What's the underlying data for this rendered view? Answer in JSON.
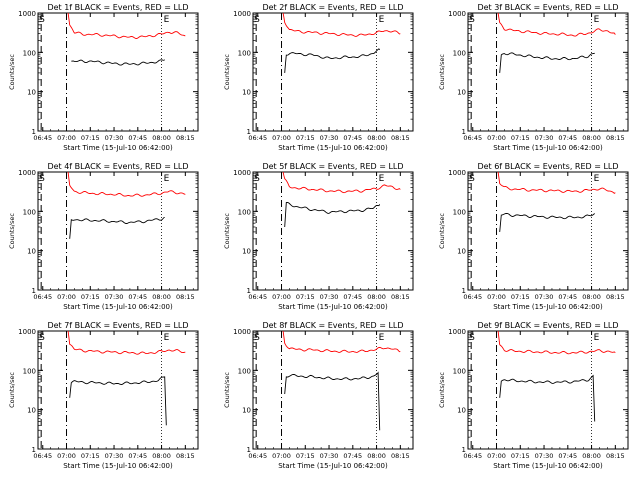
{
  "chart_data": [
    {
      "type": "line",
      "title": "Det 1f BLACK = Events, RED = LLD",
      "xlabel": "Start Time (15-Jul-10 06:42:00)",
      "ylabel": "Counts/sec",
      "y_scale": "log",
      "ylim": [
        1,
        1000
      ],
      "x_ticks": [
        "06:45",
        "07:00",
        "07:15",
        "07:30",
        "07:45",
        "08:00",
        "08:15"
      ],
      "markers": {
        "S": "06:44",
        "E": "08:00"
      },
      "series": [
        {
          "name": "LLD",
          "color": "#ff0000",
          "x": [
            "07:01",
            "07:02",
            "07:05",
            "07:10",
            "07:20",
            "07:30",
            "07:40",
            "07:50",
            "08:00",
            "08:05",
            "08:10",
            "08:15"
          ],
          "y": [
            1000,
            500,
            320,
            290,
            280,
            260,
            240,
            250,
            290,
            330,
            310,
            260
          ]
        },
        {
          "name": "Events",
          "color": "#000000",
          "x": [
            "07:03",
            "07:05",
            "07:10",
            "07:20",
            "07:30",
            "07:40",
            "07:50",
            "08:00",
            "08:02"
          ],
          "y": [
            60,
            58,
            60,
            57,
            52,
            50,
            53,
            60,
            65
          ]
        }
      ]
    },
    {
      "type": "line",
      "title": "Det 2f BLACK = Events, RED = LLD",
      "xlabel": "Start Time (15-Jul-10 06:42:00)",
      "ylabel": "Counts/sec",
      "y_scale": "log",
      "ylim": [
        1,
        1000
      ],
      "x_ticks": [
        "06:45",
        "07:00",
        "07:15",
        "07:30",
        "07:45",
        "08:00",
        "08:15"
      ],
      "markers": {
        "S": "06:44",
        "E": "08:00"
      },
      "series": [
        {
          "name": "LLD",
          "color": "#ff0000",
          "x": [
            "07:01",
            "07:02",
            "07:05",
            "07:10",
            "07:20",
            "07:30",
            "07:40",
            "07:50",
            "08:00",
            "08:05",
            "08:10",
            "08:15"
          ],
          "y": [
            1000,
            600,
            380,
            340,
            320,
            300,
            280,
            270,
            310,
            360,
            340,
            300
          ]
        },
        {
          "name": "Events",
          "color": "#000000",
          "x": [
            "07:02",
            "07:03",
            "07:05",
            "07:10",
            "07:20",
            "07:30",
            "07:40",
            "07:50",
            "07:58",
            "08:00",
            "08:02"
          ],
          "y": [
            30,
            90,
            95,
            92,
            85,
            70,
            75,
            78,
            95,
            110,
            115
          ]
        }
      ]
    },
    {
      "type": "line",
      "title": "Det 3f BLACK = Events, RED = LLD",
      "xlabel": "Start Time (15-Jul-10 06:42:00)",
      "ylabel": "Counts/sec",
      "y_scale": "log",
      "ylim": [
        1,
        1000
      ],
      "x_ticks": [
        "06:45",
        "07:00",
        "07:15",
        "07:30",
        "07:45",
        "08:00",
        "08:15"
      ],
      "markers": {
        "S": "06:44",
        "E": "08:00"
      },
      "series": [
        {
          "name": "LLD",
          "color": "#ff0000",
          "x": [
            "07:01",
            "07:02",
            "07:05",
            "07:10",
            "07:20",
            "07:30",
            "07:40",
            "07:50",
            "08:00",
            "08:05",
            "08:10",
            "08:15"
          ],
          "y": [
            1000,
            550,
            400,
            360,
            330,
            300,
            290,
            270,
            320,
            380,
            350,
            280
          ]
        },
        {
          "name": "Events",
          "color": "#000000",
          "x": [
            "07:02",
            "07:03",
            "07:05",
            "07:10",
            "07:20",
            "07:30",
            "07:40",
            "07:50",
            "07:58",
            "08:00",
            "08:02"
          ],
          "y": [
            30,
            85,
            95,
            90,
            80,
            72,
            68,
            70,
            80,
            90,
            95
          ]
        }
      ]
    },
    {
      "type": "line",
      "title": "Det 4f BLACK = Events, RED = LLD",
      "xlabel": "Start Time (15-Jul-10 06:42:00)",
      "ylabel": "Counts/sec",
      "y_scale": "log",
      "ylim": [
        1,
        1000
      ],
      "x_ticks": [
        "06:45",
        "07:00",
        "07:15",
        "07:30",
        "07:45",
        "08:00",
        "08:15"
      ],
      "markers": {
        "S": "06:44",
        "E": "08:00"
      },
      "series": [
        {
          "name": "LLD",
          "color": "#ff0000",
          "x": [
            "07:01",
            "07:02",
            "07:05",
            "07:10",
            "07:20",
            "07:30",
            "07:40",
            "07:50",
            "08:00",
            "08:05",
            "08:10",
            "08:15"
          ],
          "y": [
            1000,
            450,
            320,
            300,
            280,
            270,
            250,
            260,
            290,
            320,
            300,
            270
          ]
        },
        {
          "name": "Events",
          "color": "#000000",
          "x": [
            "07:02",
            "07:03",
            "07:05",
            "07:10",
            "07:20",
            "07:30",
            "07:40",
            "07:50",
            "08:00",
            "08:02"
          ],
          "y": [
            20,
            60,
            62,
            60,
            58,
            55,
            52,
            56,
            65,
            70
          ]
        }
      ]
    },
    {
      "type": "line",
      "title": "Det 5f BLACK = Events, RED = LLD",
      "xlabel": "Start Time (15-Jul-10 06:42:00)",
      "ylabel": "Counts/sec",
      "y_scale": "log",
      "ylim": [
        1,
        1000
      ],
      "x_ticks": [
        "06:45",
        "07:00",
        "07:15",
        "07:30",
        "07:45",
        "08:00",
        "08:15"
      ],
      "markers": {
        "S": "06:44",
        "E": "08:00"
      },
      "series": [
        {
          "name": "LLD",
          "color": "#ff0000",
          "x": [
            "07:01",
            "07:02",
            "07:05",
            "07:10",
            "07:20",
            "07:30",
            "07:40",
            "07:50",
            "08:00",
            "08:05",
            "08:10",
            "08:15"
          ],
          "y": [
            1000,
            650,
            420,
            390,
            360,
            330,
            320,
            330,
            380,
            450,
            420,
            360
          ]
        },
        {
          "name": "Events",
          "color": "#000000",
          "x": [
            "07:02",
            "07:03",
            "07:05",
            "07:10",
            "07:20",
            "07:30",
            "07:40",
            "07:50",
            "07:58",
            "08:00",
            "08:02"
          ],
          "y": [
            40,
            160,
            150,
            130,
            110,
            95,
            100,
            105,
            120,
            140,
            150
          ]
        }
      ]
    },
    {
      "type": "line",
      "title": "Det 6f BLACK = Events, RED = LLD",
      "xlabel": "Start Time (15-Jul-10 06:42:00)",
      "ylabel": "Counts/sec",
      "y_scale": "log",
      "ylim": [
        1,
        1000
      ],
      "x_ticks": [
        "06:45",
        "07:00",
        "07:15",
        "07:30",
        "07:45",
        "08:00",
        "08:15"
      ],
      "markers": {
        "S": "06:44",
        "E": "08:00"
      },
      "series": [
        {
          "name": "LLD",
          "color": "#ff0000",
          "x": [
            "07:01",
            "07:02",
            "07:05",
            "07:10",
            "07:20",
            "07:30",
            "07:40",
            "07:50",
            "08:00",
            "08:05",
            "08:10",
            "08:15"
          ],
          "y": [
            1000,
            520,
            400,
            370,
            350,
            340,
            330,
            320,
            350,
            380,
            340,
            300
          ]
        },
        {
          "name": "Events",
          "color": "#000000",
          "x": [
            "07:02",
            "07:03",
            "07:05",
            "07:10",
            "07:20",
            "07:30",
            "07:40",
            "07:50",
            "07:58",
            "08:00",
            "08:02"
          ],
          "y": [
            30,
            80,
            85,
            80,
            76,
            72,
            70,
            70,
            75,
            80,
            88
          ]
        }
      ]
    },
    {
      "type": "line",
      "title": "Det 7f BLACK = Events, RED = LLD",
      "xlabel": "Start Time (15-Jul-10 06:42:00)",
      "ylabel": "Counts/sec",
      "y_scale": "log",
      "ylim": [
        1,
        1000
      ],
      "x_ticks": [
        "06:45",
        "07:00",
        "07:15",
        "07:30",
        "07:45",
        "08:00",
        "08:15"
      ],
      "markers": {
        "S": "06:44",
        "E": "08:00"
      },
      "series": [
        {
          "name": "LLD",
          "color": "#ff0000",
          "x": [
            "07:01",
            "07:02",
            "07:05",
            "07:10",
            "07:20",
            "07:30",
            "07:40",
            "07:50",
            "08:00",
            "08:05",
            "08:10",
            "08:15"
          ],
          "y": [
            1000,
            480,
            340,
            320,
            300,
            290,
            280,
            270,
            300,
            330,
            310,
            290
          ]
        },
        {
          "name": "Events",
          "color": "#000000",
          "x": [
            "07:02",
            "07:03",
            "07:05",
            "07:10",
            "07:20",
            "07:30",
            "07:40",
            "07:50",
            "07:58",
            "08:01",
            "08:02",
            "08:03"
          ],
          "y": [
            20,
            50,
            52,
            50,
            48,
            46,
            47,
            50,
            55,
            65,
            70,
            4
          ]
        }
      ]
    },
    {
      "type": "line",
      "title": "Det 8f BLACK = Events, RED = LLD",
      "xlabel": "Start Time (15-Jul-10 06:42:00)",
      "ylabel": "Counts/sec",
      "y_scale": "log",
      "ylim": [
        1,
        1000
      ],
      "x_ticks": [
        "06:45",
        "07:00",
        "07:15",
        "07:30",
        "07:45",
        "08:00",
        "08:15"
      ],
      "markers": {
        "S": "06:44",
        "E": "08:00"
      },
      "series": [
        {
          "name": "LLD",
          "color": "#ff0000",
          "x": [
            "07:01",
            "07:02",
            "07:05",
            "07:10",
            "07:20",
            "07:30",
            "07:40",
            "07:50",
            "08:00",
            "08:05",
            "08:10",
            "08:15"
          ],
          "y": [
            1000,
            500,
            360,
            340,
            330,
            310,
            300,
            300,
            340,
            380,
            350,
            300
          ]
        },
        {
          "name": "Events",
          "color": "#000000",
          "x": [
            "07:02",
            "07:03",
            "07:05",
            "07:10",
            "07:20",
            "07:30",
            "07:40",
            "07:50",
            "07:58",
            "08:00",
            "08:01",
            "08:02"
          ],
          "y": [
            25,
            70,
            75,
            72,
            68,
            62,
            60,
            62,
            70,
            80,
            85,
            3
          ]
        }
      ]
    },
    {
      "type": "line",
      "title": "Det 9f BLACK = Events, RED = LLD",
      "xlabel": "Start Time (15-Jul-10 06:42:00)",
      "ylabel": "Counts/sec",
      "y_scale": "log",
      "ylim": [
        1,
        1000
      ],
      "x_ticks": [
        "06:45",
        "07:00",
        "07:15",
        "07:30",
        "07:45",
        "08:00",
        "08:15"
      ],
      "markers": {
        "S": "06:44",
        "E": "08:00"
      },
      "series": [
        {
          "name": "LLD",
          "color": "#ff0000",
          "x": [
            "07:01",
            "07:02",
            "07:05",
            "07:10",
            "07:20",
            "07:30",
            "07:40",
            "07:50",
            "08:00",
            "08:05",
            "08:10",
            "08:15"
          ],
          "y": [
            1000,
            450,
            330,
            310,
            300,
            290,
            280,
            280,
            300,
            320,
            300,
            280
          ]
        },
        {
          "name": "Events",
          "color": "#000000",
          "x": [
            "07:02",
            "07:03",
            "07:05",
            "07:10",
            "07:20",
            "07:30",
            "07:40",
            "07:50",
            "07:58",
            "08:00",
            "08:01",
            "08:02"
          ],
          "y": [
            20,
            55,
            58,
            55,
            52,
            50,
            50,
            52,
            58,
            65,
            70,
            5
          ]
        }
      ]
    }
  ]
}
